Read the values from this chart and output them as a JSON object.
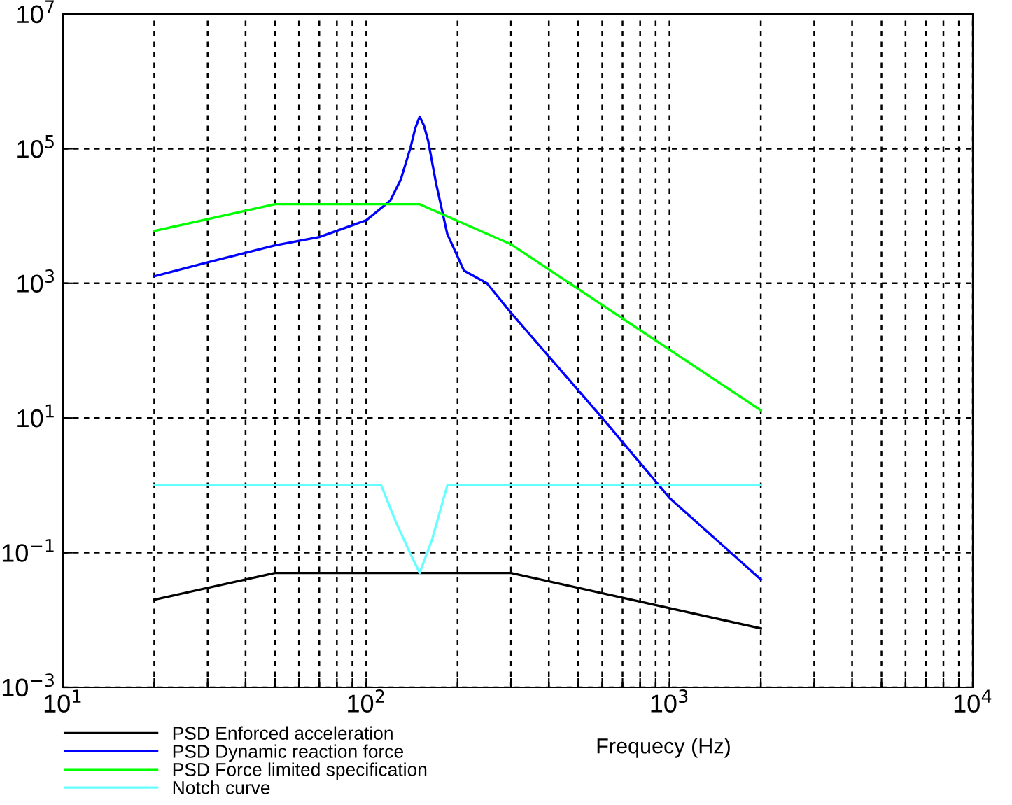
{
  "chart_data": {
    "type": "line",
    "xlabel": "Frequecy (Hz)",
    "log": "xy",
    "grid": true,
    "legend": "bottom",
    "xlim": [
      10,
      10000
    ],
    "ylim": [
      0.001,
      10000000
    ],
    "xticks": [
      {
        "value": 10,
        "label": "10$^{1}$"
      },
      {
        "value": 20,
        "label": null
      },
      {
        "value": 30,
        "label": null
      },
      {
        "value": 40,
        "label": null
      },
      {
        "value": 50,
        "label": null
      },
      {
        "value": 60,
        "label": null
      },
      {
        "value": 70,
        "label": null
      },
      {
        "value": 80,
        "label": null
      },
      {
        "value": 90,
        "label": null
      },
      {
        "value": 100,
        "label": "10$^{2}$"
      },
      {
        "value": 200,
        "label": null
      },
      {
        "value": 300,
        "label": null
      },
      {
        "value": 400,
        "label": null
      },
      {
        "value": 500,
        "label": null
      },
      {
        "value": 600,
        "label": null
      },
      {
        "value": 700,
        "label": null
      },
      {
        "value": 800,
        "label": null
      },
      {
        "value": 900,
        "label": null
      },
      {
        "value": 1000,
        "label": "10$^{3}$"
      },
      {
        "value": 2000,
        "label": null
      },
      {
        "value": 3000,
        "label": null
      },
      {
        "value": 4000,
        "label": null
      },
      {
        "value": 5000,
        "label": null
      },
      {
        "value": 6000,
        "label": null
      },
      {
        "value": 7000,
        "label": null
      },
      {
        "value": 8000,
        "label": null
      },
      {
        "value": 9000,
        "label": null
      },
      {
        "value": 10000,
        "label": "10$^{4}$"
      }
    ],
    "yticks": [
      {
        "value": 0.001,
        "label": "10$^{−3}$"
      },
      {
        "value": 0.1,
        "label": "10$^{−1}$"
      },
      {
        "value": 10,
        "label": "10$^{1}$"
      },
      {
        "value": 1000,
        "label": "10$^{3}$"
      },
      {
        "value": 100000,
        "label": "10$^{5}$"
      },
      {
        "value": 10000000,
        "label": "10$^{7}$"
      }
    ],
    "series": [
      {
        "name": "PSD Enforced acceleration",
        "color": "#000000",
        "x": [
          20,
          50,
          300,
          2000
        ],
        "values": [
          0.02,
          0.05,
          0.05,
          0.0075
        ]
      },
      {
        "name": "PSD Dynamic reaction force",
        "color": "#0000ff",
        "x": [
          20,
          30,
          50,
          70,
          100,
          120,
          130,
          140,
          145,
          150,
          155,
          160,
          170,
          185,
          210,
          250,
          300,
          600,
          1000,
          2000
        ],
        "values": [
          1270,
          2050,
          3650,
          4870,
          8660,
          17000,
          35000,
          105000,
          200000,
          300000,
          220000,
          130000,
          30000,
          5400,
          1540,
          1000,
          365,
          10,
          0.65,
          0.04
        ]
      },
      {
        "name": "PSD Force limited specification",
        "color": "#00ff00",
        "x": [
          20,
          50,
          150,
          300,
          2000
        ],
        "values": [
          6000,
          15000,
          15000,
          3800,
          13
        ]
      },
      {
        "name": "Notch curve",
        "color": "#66ffff",
        "x": [
          20,
          112,
          125,
          140,
          150,
          165,
          185,
          2000
        ],
        "values": [
          1,
          1,
          0.29,
          0.095,
          0.05,
          0.16,
          1,
          1
        ]
      }
    ]
  }
}
